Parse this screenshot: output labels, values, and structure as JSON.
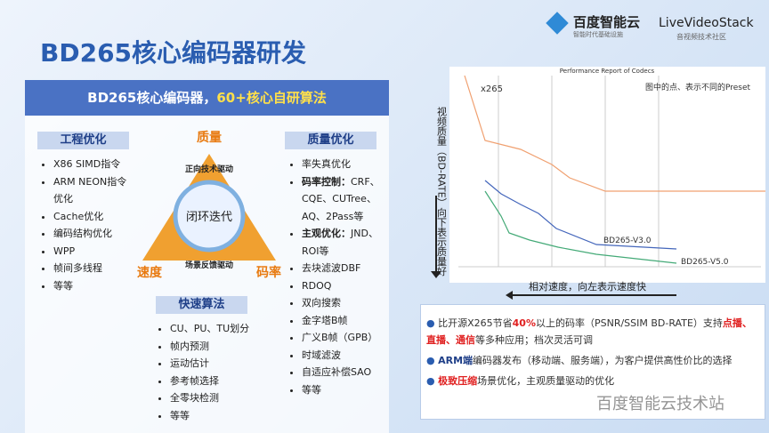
{
  "header": {
    "title": "BD265核心编码器研发",
    "logos": [
      {
        "name": "百度智能云",
        "tagline": "智能时代基础设施"
      },
      {
        "name": "LiveVideoStack",
        "tagline": "音视频技术社区"
      }
    ]
  },
  "panel": {
    "title": "BD265核心编码器，",
    "title_highlight": "60+核心自研算法",
    "engineering": {
      "heading": "工程优化",
      "items": [
        "X86 SIMD指令",
        "ARM NEON指令优化",
        "Cache优化",
        "编码结构优化",
        "WPP",
        "帧间多线程",
        "等等"
      ]
    },
    "diagram": {
      "top": "质量",
      "left": "速度",
      "right": "码率",
      "center": "闭环迭代",
      "forward": "正向技术驱动",
      "feedback": "场景反馈驱动"
    },
    "fast": {
      "heading": "快速算法",
      "items": [
        "CU、PU、TU划分",
        "帧内预测",
        "运动估计",
        "参考帧选择",
        "全零块检测",
        "等等"
      ]
    },
    "quality": {
      "heading": "质量优化",
      "items": [
        "率失真优化",
        {
          "label": "码率控制：",
          "text": "CRF、CQE、CUTree、AQ、2Pass等"
        },
        {
          "label": "主观优化：",
          "text": "JND、ROI等"
        },
        "去块滤波DBF",
        "RDOQ",
        "双向搜索",
        "金字塔B帧",
        "广义B帧（GPB）",
        "时域滤波",
        "自适应补偿SAO",
        "等等"
      ]
    }
  },
  "figure": {
    "title": "Performance Report of Codecs",
    "note": "图中的点、表示不同的Preset",
    "y_label": "视频质量（BD-RATE）向下表示质量好",
    "x_label": "相对速度，向左表示速度快",
    "series": [
      "x265",
      "BD265-V3.0",
      "BD265-V5.0"
    ]
  },
  "summary": {
    "bullets": [
      [
        "比开源X265节省",
        "40%",
        "以上的码率（PSNR/SSIM BD-RATE）支持",
        "点播、直播、通信",
        "等多种应用；档次灵活可调"
      ],
      [
        "ARM端",
        "编码器发布（移动端、服务端），为客户提供高性价比的选择"
      ],
      [
        "极致压缩",
        "场景优化，主观质量驱动的优化"
      ]
    ]
  },
  "watermark": "百度智能云技术站"
}
